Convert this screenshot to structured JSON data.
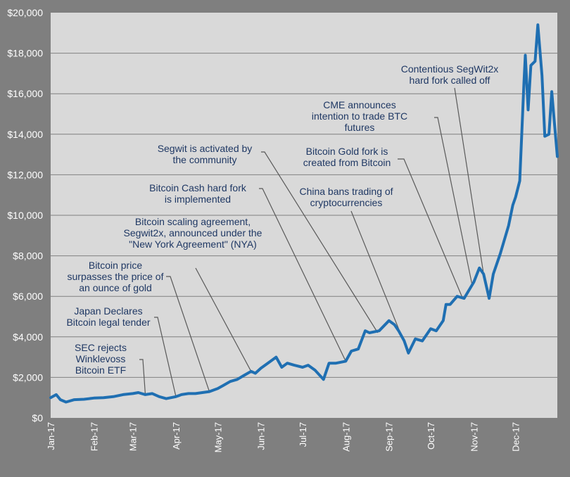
{
  "chart_data": {
    "type": "line",
    "title": "",
    "xlabel": "",
    "ylabel": "",
    "ylim": [
      0,
      20000
    ],
    "yticks": [
      {
        "value": 0,
        "label": "$0"
      },
      {
        "value": 2000,
        "label": "$2,000"
      },
      {
        "value": 4000,
        "label": "$4,000"
      },
      {
        "value": 6000,
        "label": "$6,000"
      },
      {
        "value": 8000,
        "label": "$8,000"
      },
      {
        "value": 10000,
        "label": "$10,000"
      },
      {
        "value": 12000,
        "label": "$12,000"
      },
      {
        "value": 14000,
        "label": "$14,000"
      },
      {
        "value": 16000,
        "label": "$16,000"
      },
      {
        "value": 18000,
        "label": "$18,000"
      },
      {
        "value": 20000,
        "label": "$20,000"
      }
    ],
    "xticks": [
      {
        "date": "2017-01-01",
        "label": "Jan-17"
      },
      {
        "date": "2017-02-01",
        "label": "Feb-17"
      },
      {
        "date": "2017-03-01",
        "label": "Mar-17"
      },
      {
        "date": "2017-04-01",
        "label": "Apr-17"
      },
      {
        "date": "2017-05-01",
        "label": "May-17"
      },
      {
        "date": "2017-06-01",
        "label": "Jun-17"
      },
      {
        "date": "2017-07-01",
        "label": "Jul-17"
      },
      {
        "date": "2017-08-01",
        "label": "Aug-17"
      },
      {
        "date": "2017-09-01",
        "label": "Sep-17"
      },
      {
        "date": "2017-10-01",
        "label": "Oct-17"
      },
      {
        "date": "2017-11-01",
        "label": "Nov-17"
      },
      {
        "date": "2017-12-01",
        "label": "Dec-17"
      }
    ],
    "xlim": [
      "2017-01-01",
      "2017-12-31"
    ],
    "grid": "horizontal",
    "colors": {
      "background": "#7f7f7f",
      "plot_area": "#d9d9d9",
      "line": "#1f6fb2",
      "annotation_text": "#1f3864",
      "leader": "#595959",
      "gridline": "#808080",
      "tick_text": "#ffffff"
    },
    "series": [
      {
        "x": [
          "2017-01-01",
          "2017-01-05",
          "2017-01-08",
          "2017-01-12",
          "2017-01-18",
          "2017-01-25",
          "2017-02-01",
          "2017-02-08",
          "2017-02-15",
          "2017-02-22",
          "2017-03-01",
          "2017-03-05",
          "2017-03-10",
          "2017-03-15",
          "2017-03-20",
          "2017-03-25",
          "2017-04-01",
          "2017-04-05",
          "2017-04-10",
          "2017-04-15",
          "2017-04-20",
          "2017-04-25",
          "2017-05-01",
          "2017-05-05",
          "2017-05-10",
          "2017-05-15",
          "2017-05-20",
          "2017-05-25",
          "2017-05-28",
          "2017-06-01",
          "2017-06-06",
          "2017-06-10",
          "2017-06-12",
          "2017-06-16",
          "2017-06-20",
          "2017-06-25",
          "2017-07-01",
          "2017-07-05",
          "2017-07-10",
          "2017-07-16",
          "2017-07-20",
          "2017-07-25",
          "2017-08-01",
          "2017-08-05",
          "2017-08-10",
          "2017-08-15",
          "2017-08-18",
          "2017-08-25",
          "2017-09-01",
          "2017-09-05",
          "2017-09-08",
          "2017-09-12",
          "2017-09-15",
          "2017-09-20",
          "2017-09-25",
          "2017-10-01",
          "2017-10-05",
          "2017-10-10",
          "2017-10-12",
          "2017-10-15",
          "2017-10-20",
          "2017-10-25",
          "2017-11-01",
          "2017-11-05",
          "2017-11-08",
          "2017-11-12",
          "2017-11-15",
          "2017-11-20",
          "2017-11-26",
          "2017-11-29",
          "2017-12-01",
          "2017-12-04",
          "2017-12-07",
          "2017-12-08",
          "2017-12-10",
          "2017-12-12",
          "2017-12-15",
          "2017-12-17",
          "2017-12-20",
          "2017-12-22",
          "2017-12-25",
          "2017-12-27",
          "2017-12-29",
          "2017-12-31"
        ],
        "y": [
          1000,
          1150,
          900,
          780,
          900,
          920,
          980,
          1000,
          1050,
          1150,
          1200,
          1250,
          1150,
          1200,
          1050,
          950,
          1050,
          1150,
          1200,
          1200,
          1250,
          1300,
          1450,
          1600,
          1800,
          1900,
          2100,
          2300,
          2200,
          2450,
          2700,
          2900,
          3000,
          2500,
          2700,
          2600,
          2500,
          2600,
          2350,
          1900,
          2700,
          2700,
          2800,
          3300,
          3400,
          4300,
          4200,
          4300,
          4800,
          4600,
          4300,
          3800,
          3200,
          3900,
          3800,
          4400,
          4300,
          4800,
          5600,
          5600,
          6000,
          5900,
          6700,
          7400,
          7100,
          5900,
          7100,
          8100,
          9500,
          10500,
          10900,
          11700,
          16500,
          17900,
          15200,
          17400,
          17600,
          19400,
          16900,
          13900,
          14000,
          16100,
          14500,
          12900
        ]
      }
    ],
    "annotations": [
      {
        "lines": [
          "SEC rejects",
          "Winklevoss",
          "Bitcoin ETF"
        ],
        "point": [
          "2017-03-10",
          1150
        ]
      },
      {
        "lines": [
          "Japan Declares",
          "Bitcoin legal tender"
        ],
        "point": [
          "2017-04-01",
          1050
        ]
      },
      {
        "lines": [
          "Bitcoin price",
          "surpasses the price of",
          "an ounce of gold"
        ],
        "point": [
          "2017-04-25",
          1300
        ]
      },
      {
        "lines": [
          "Bitcoin scaling agreement,",
          "Segwit2x, announced under the",
          "\"New York Agreement\" (NYA)"
        ],
        "point": [
          "2017-05-25",
          2300
        ]
      },
      {
        "lines": [
          "Bitcoin Cash hard fork",
          "is implemented"
        ],
        "point": [
          "2017-08-01",
          2800
        ]
      },
      {
        "lines": [
          "Segwit is activated by",
          "the community"
        ],
        "point": [
          "2017-08-24",
          4200
        ]
      },
      {
        "lines": [
          "China bans trading of",
          "cryptocurrencies"
        ],
        "point": [
          "2017-09-15",
          3200
        ]
      },
      {
        "lines": [
          "Bitcoin Gold fork is",
          "created from Bitcoin"
        ],
        "point": [
          "2017-10-24",
          5900
        ]
      },
      {
        "lines": [
          "CME announces",
          "intention to trade BTC",
          "futures"
        ],
        "point": [
          "2017-10-31",
          6500
        ]
      },
      {
        "lines": [
          "Contentious SegWit2x",
          "hard fork called off"
        ],
        "point": [
          "2017-11-08",
          7100
        ]
      }
    ]
  }
}
